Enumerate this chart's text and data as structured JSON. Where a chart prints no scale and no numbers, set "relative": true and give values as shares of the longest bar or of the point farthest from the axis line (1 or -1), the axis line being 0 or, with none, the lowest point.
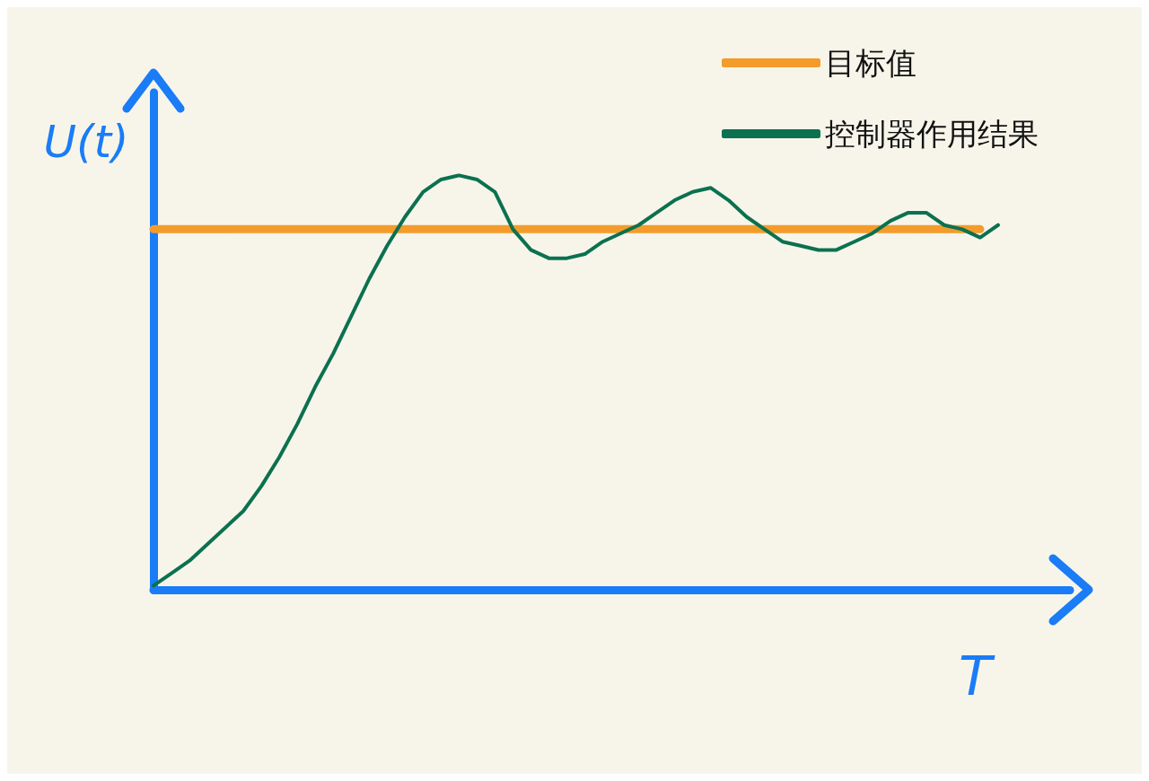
{
  "chart_data": {
    "type": "line",
    "xlabel": "T",
    "ylabel": "U(t)",
    "relative": true,
    "legend": "top right",
    "marker": "none",
    "categories": [
      null,
      null,
      null,
      null,
      null,
      null,
      null,
      null,
      null,
      null,
      null,
      null,
      null,
      null,
      null,
      null,
      null,
      null,
      null,
      null,
      null,
      null,
      null,
      null,
      null,
      null,
      null,
      null,
      null,
      null,
      null,
      null,
      null,
      null,
      null,
      null,
      null,
      null,
      null,
      null,
      null,
      null,
      null,
      null,
      null,
      null,
      null,
      null,
      null,
      null,
      null,
      null
    ],
    "series": [
      {
        "name": "目标值",
        "color": "#f39c2b",
        "values": [
          0.87,
          0.87,
          0.87,
          0.87,
          0.87,
          0.87,
          0.87,
          0.87,
          0.87,
          0.87,
          0.87,
          0.87,
          0.87,
          0.87,
          0.87,
          0.87,
          0.87,
          0.87,
          0.87,
          0.87,
          0.87,
          0.87,
          0.87,
          0.87,
          0.87,
          0.87,
          0.87,
          0.87,
          0.87,
          0.87,
          0.87,
          0.87,
          0.87,
          0.87,
          0.87,
          0.87,
          0.87,
          0.87,
          0.87,
          0.87,
          0.87,
          0.87,
          0.87,
          0.87,
          0.87,
          0.87,
          0.87,
          null,
          null,
          null,
          null,
          null
        ]
      },
      {
        "name": "控制器作用结果",
        "color": "#0b7150",
        "values": [
          0.01,
          0.04,
          0.07,
          0.11,
          0.15,
          0.19,
          0.25,
          0.32,
          0.4,
          0.49,
          0.57,
          0.66,
          0.75,
          0.83,
          0.9,
          0.96,
          0.99,
          1,
          0.99,
          0.96,
          0.87,
          0.82,
          0.8,
          0.8,
          0.81,
          0.84,
          0.86,
          0.88,
          0.91,
          0.94,
          0.96,
          0.97,
          0.94,
          0.9,
          0.87,
          0.84,
          0.83,
          0.82,
          0.82,
          0.84,
          0.86,
          0.89,
          0.91,
          0.91,
          0.88,
          0.87,
          0.85,
          0.88,
          null,
          null,
          null,
          null
        ]
      }
    ]
  }
}
